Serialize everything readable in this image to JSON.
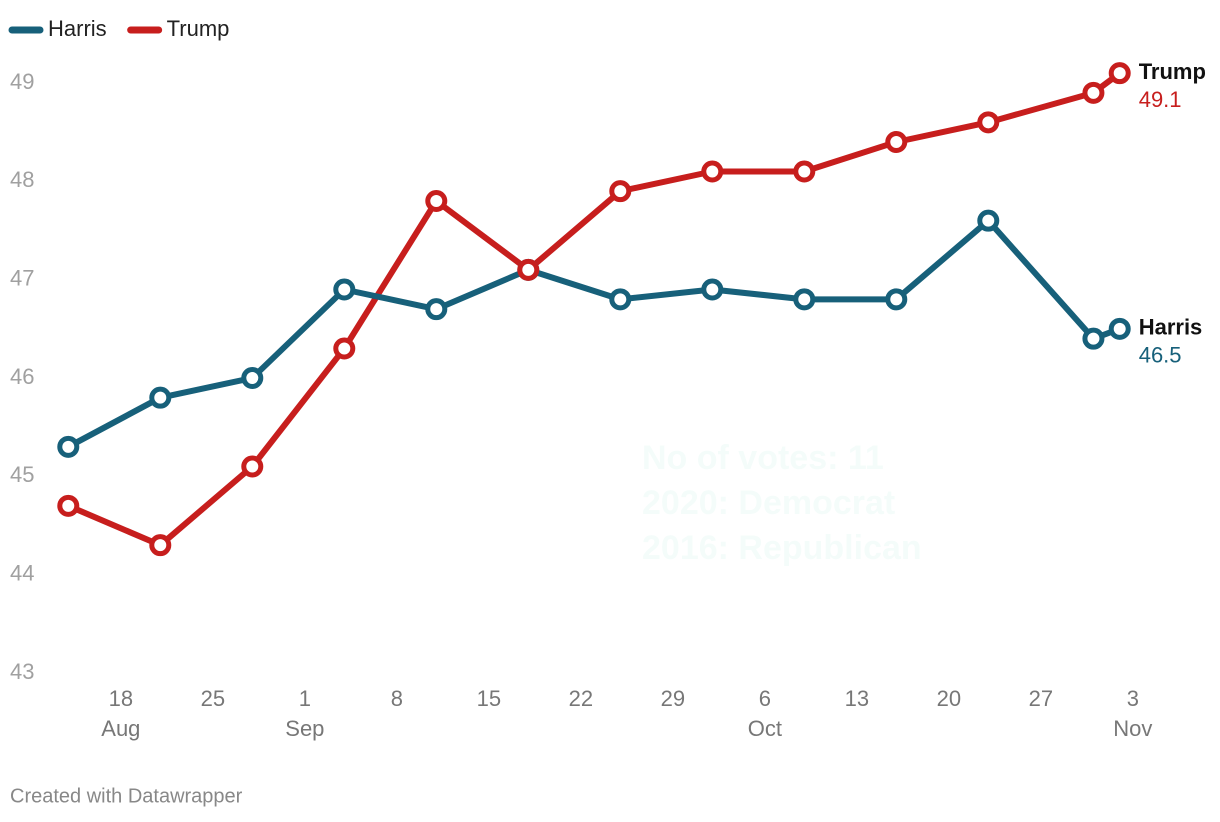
{
  "chart_data": {
    "type": "line",
    "x": [
      "08-14",
      "08-21",
      "08-28",
      "09-04",
      "09-11",
      "09-18",
      "09-25",
      "10-02",
      "10-09",
      "10-16",
      "10-23",
      "10-31",
      "11-02"
    ],
    "series": [
      {
        "name": "Harris",
        "color": "#17607a",
        "values": [
          45.3,
          45.8,
          46.0,
          46.9,
          46.7,
          47.1,
          46.8,
          46.9,
          46.8,
          46.8,
          47.6,
          46.4,
          46.5
        ]
      },
      {
        "name": "Trump",
        "color": "#c71e1d",
        "values": [
          44.7,
          44.3,
          45.1,
          46.3,
          47.8,
          47.1,
          47.9,
          48.1,
          48.1,
          48.4,
          48.6,
          48.9,
          49.1
        ]
      }
    ],
    "xlim": [
      "08-12",
      "11-04"
    ],
    "xticks": [
      {
        "value": "08-18",
        "label": "18",
        "month": "Aug"
      },
      {
        "value": "08-25",
        "label": "25"
      },
      {
        "value": "09-01",
        "label": "1",
        "month": "Sep"
      },
      {
        "value": "09-08",
        "label": "8"
      },
      {
        "value": "09-15",
        "label": "15"
      },
      {
        "value": "09-22",
        "label": "22"
      },
      {
        "value": "09-29",
        "label": "29"
      },
      {
        "value": "10-06",
        "label": "6",
        "month": "Oct"
      },
      {
        "value": "10-13",
        "label": "13"
      },
      {
        "value": "10-20",
        "label": "20"
      },
      {
        "value": "10-27",
        "label": "27"
      },
      {
        "value": "11-03",
        "label": "3",
        "month": "Nov"
      }
    ],
    "ylim": [
      43,
      49
    ],
    "yticks": [
      43,
      44,
      45,
      46,
      47,
      48,
      49
    ],
    "grid": false,
    "legend": "top-left",
    "annotation": [
      "No of votes: 11",
      "2020: Democrat",
      "2016: Republican"
    ],
    "source": "Created with Datawrapper"
  }
}
